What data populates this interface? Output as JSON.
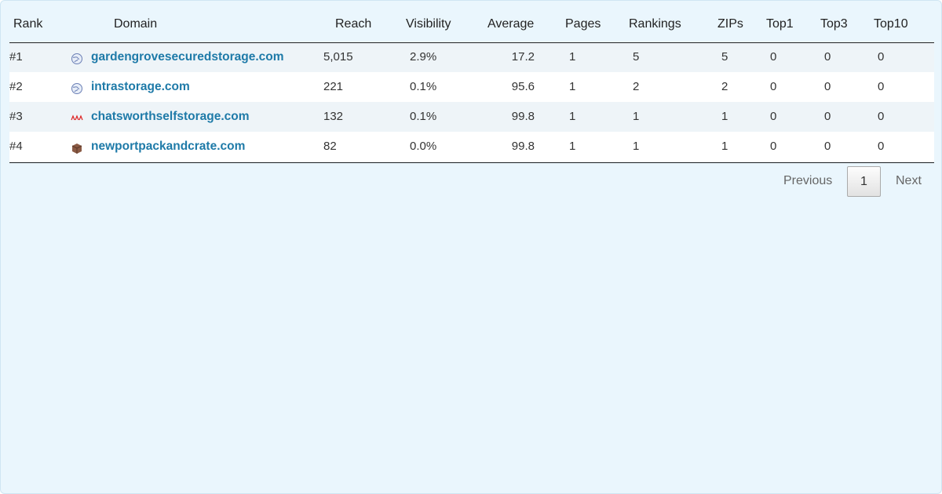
{
  "table": {
    "columns": [
      "Rank",
      "Domain",
      "Reach",
      "Visibility",
      "Average",
      "Pages",
      "Rankings",
      "ZIPs",
      "Top1",
      "Top3",
      "Top10"
    ],
    "rows": [
      [
        "#1",
        "gardengrovesecuredstorage.com",
        "5,015",
        "2.9%",
        "17.2",
        "1",
        "5",
        "5",
        "0",
        "0",
        "0"
      ],
      [
        "#2",
        "intrastorage.com",
        "221",
        "0.1%",
        "95.6",
        "1",
        "2",
        "2",
        "0",
        "0",
        "0"
      ],
      [
        "#3",
        "chatsworthselfstorage.com",
        "132",
        "0.1%",
        "99.8",
        "1",
        "1",
        "1",
        "0",
        "0",
        "0"
      ],
      [
        "#4",
        "newportpackandcrate.com",
        "82",
        "0.0%",
        "99.8",
        "1",
        "1",
        "1",
        "0",
        "0",
        "0"
      ]
    ]
  },
  "pagination": {
    "previous": "Previous",
    "page": "1",
    "next": "Next"
  }
}
